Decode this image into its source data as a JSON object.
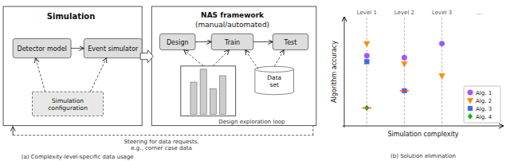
{
  "chart_data": [
    {
      "type": "diagram",
      "title": "(a) Complexity-level-specific data usage",
      "annotations": [
        "Simulation",
        "NAS framework\n(manual/automated)",
        "Detector model",
        "Event simulator",
        "Simulation\nconfiguration",
        "Design",
        "Train",
        "Test",
        "Data\nset",
        "Design exploration loop",
        "Steering for data requests,\ne.g., corner case data"
      ]
    },
    {
      "type": "scatter",
      "title": "(b) Solution elimination",
      "x_label": "Simulation complexity",
      "y_label": "Algorithm accuracy",
      "categories": [
        "Level 1",
        "Level 2",
        "Level 3",
        "..."
      ],
      "ylim": [
        0.0,
        1.08
      ],
      "tick_labels": "x",
      "legend": "lower right",
      "series": [
        {
          "name": "Alg. 1",
          "color": "#9B59FF",
          "marker": "circle",
          "values": [
            0.7,
            0.68,
            0.82,
            null
          ]
        },
        {
          "name": "Alg. 2",
          "color": "#FF8C00",
          "marker": "triangle-down",
          "values": [
            0.82,
            0.62,
            0.5,
            null
          ]
        },
        {
          "name": "Alg. 3",
          "color": "#4169E1",
          "marker": "square",
          "values": [
            0.64,
            0.35,
            null,
            null
          ]
        },
        {
          "name": "Alg. 4",
          "color": "#00BB00",
          "marker": "diamond",
          "values": [
            0.18,
            null,
            null,
            null
          ]
        }
      ],
      "thresholds": {
        "color": "#FF4444",
        "values": [
          0.18,
          0.35,
          null,
          null
        ]
      }
    }
  ]
}
